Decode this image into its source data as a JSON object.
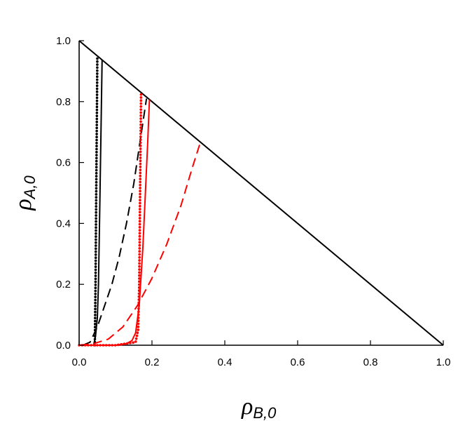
{
  "chart_data": {
    "type": "line",
    "title": "",
    "xlabel": "ρ",
    "xlabel_sub": "B,0",
    "ylabel": "ρ",
    "ylabel_sub": "A,0",
    "xlim": [
      0,
      1
    ],
    "ylim": [
      0,
      1
    ],
    "x_ticks": [
      "0.0",
      "0.2",
      "0.4",
      "0.6",
      "0.8",
      "1.0"
    ],
    "y_ticks": [
      "0.0",
      "0.2",
      "0.4",
      "0.6",
      "0.8",
      "1.0"
    ],
    "grid": false,
    "legend": "none",
    "series": [
      {
        "color": "#000000",
        "style": "solid",
        "x": [
          0,
          1
        ],
        "y": [
          1,
          0
        ]
      },
      {
        "color": "#000000",
        "style": "dotted",
        "x": [
          0.043,
          0.045,
          0.047,
          0.049,
          0.05
        ],
        "y": [
          0.0,
          0.2,
          0.5,
          0.8,
          0.95
        ]
      },
      {
        "color": "#000000",
        "style": "solid",
        "x": [
          0.04,
          0.045,
          0.05,
          0.053,
          0.056,
          0.06,
          0.063
        ],
        "y": [
          0.0,
          0.03,
          0.09,
          0.2,
          0.4,
          0.7,
          0.937
        ]
      },
      {
        "color": "#000000",
        "style": "dashed",
        "x": [
          0.01,
          0.03,
          0.05,
          0.07,
          0.09,
          0.11,
          0.13,
          0.15,
          0.17,
          0.185
        ],
        "y": [
          0.0,
          0.01,
          0.06,
          0.13,
          0.2,
          0.29,
          0.4,
          0.53,
          0.69,
          0.81
        ]
      },
      {
        "color": "#ff0000",
        "style": "dotted",
        "x": [
          0.0,
          0.1,
          0.155,
          0.162,
          0.165,
          0.167,
          0.169,
          0.17
        ],
        "y": [
          0.0,
          0.0,
          0.01,
          0.05,
          0.2,
          0.45,
          0.7,
          0.83
        ]
      },
      {
        "color": "#ff0000",
        "style": "solid",
        "x": [
          0.0,
          0.1,
          0.13,
          0.145,
          0.155,
          0.165,
          0.175,
          0.182,
          0.188,
          0.193
        ],
        "y": [
          0.0,
          0.0,
          0.005,
          0.015,
          0.04,
          0.13,
          0.32,
          0.5,
          0.66,
          0.807
        ]
      },
      {
        "color": "#ff0000",
        "style": "dashed",
        "x": [
          0.0,
          0.04,
          0.08,
          0.12,
          0.16,
          0.2,
          0.24,
          0.28,
          0.31,
          0.333
        ],
        "y": [
          0.0,
          0.005,
          0.02,
          0.06,
          0.13,
          0.22,
          0.33,
          0.46,
          0.58,
          0.667
        ]
      }
    ]
  }
}
